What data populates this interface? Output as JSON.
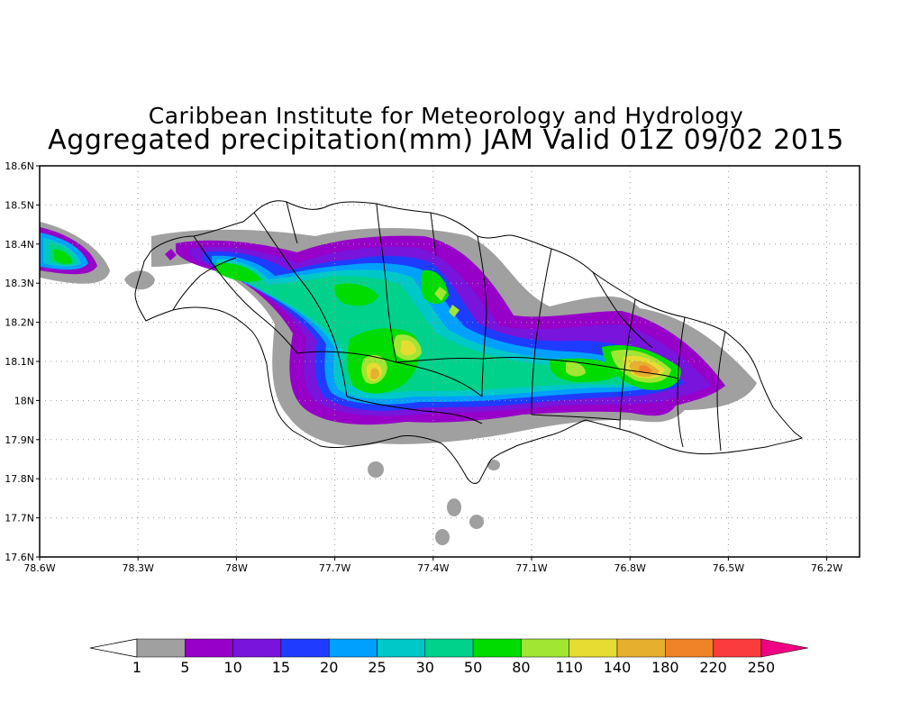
{
  "title": "Caribbean Institute for Meteorology and Hydrology",
  "subtitle": "Aggregated precipitation(mm) JAM Valid 01Z 09/02 2015",
  "map": {
    "region": "Jamaica",
    "variable": "Aggregated precipitation",
    "units": "mm",
    "lat_range": [
      17.6,
      18.6
    ],
    "lon_range": [
      -78.6,
      -76.1
    ],
    "grid": true,
    "lat_ticks": [
      {
        "value": 18.6,
        "label": "18.6N"
      },
      {
        "value": 18.5,
        "label": "18.5N"
      },
      {
        "value": 18.4,
        "label": "18.4N"
      },
      {
        "value": 18.3,
        "label": "18.3N"
      },
      {
        "value": 18.2,
        "label": "18.2N"
      },
      {
        "value": 18.1,
        "label": "18.1N"
      },
      {
        "value": 18.0,
        "label": "18N"
      },
      {
        "value": 17.9,
        "label": "17.9N"
      },
      {
        "value": 17.8,
        "label": "17.8N"
      },
      {
        "value": 17.7,
        "label": "17.7N"
      },
      {
        "value": 17.6,
        "label": "17.6N"
      }
    ],
    "lon_ticks": [
      {
        "value": -78.6,
        "label": "78.6W"
      },
      {
        "value": -78.3,
        "label": "78.3W"
      },
      {
        "value": -78.0,
        "label": "78W"
      },
      {
        "value": -77.7,
        "label": "77.7W"
      },
      {
        "value": -77.4,
        "label": "77.4W"
      },
      {
        "value": -77.1,
        "label": "77.1W"
      },
      {
        "value": -76.8,
        "label": "76.8W"
      },
      {
        "value": -76.5,
        "label": "76.5W"
      },
      {
        "value": -76.2,
        "label": "76.2W"
      }
    ]
  },
  "colorbar": {
    "levels": [
      "1",
      "5",
      "10",
      "15",
      "20",
      "25",
      "30",
      "50",
      "80",
      "110",
      "140",
      "180",
      "220",
      "250"
    ],
    "colors": [
      "#ffffff",
      "#a0a0a0",
      "#9600c8",
      "#7814dc",
      "#1e3cff",
      "#00a0ff",
      "#00c8c8",
      "#00d28c",
      "#00dc00",
      "#a0e632",
      "#e6dc32",
      "#e6af2d",
      "#f08228",
      "#fa3c3c",
      "#f00082"
    ]
  }
}
